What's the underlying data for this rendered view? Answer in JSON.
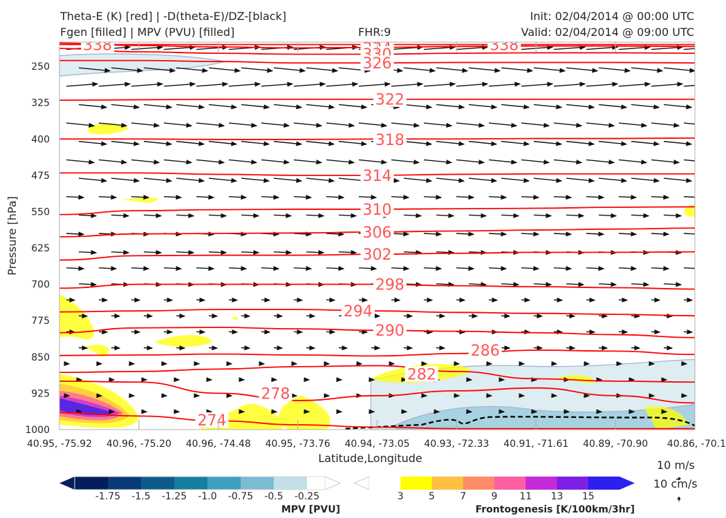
{
  "header": {
    "title_left_1": "Theta-E (K) [red] | -D(theta-E)/DZ-[black]",
    "title_left_2": "Fgen [filled] | MPV (PVU) [filled]",
    "fhr": "FHR:9",
    "init": "Init: 02/04/2014 @ 00:00 UTC",
    "valid": "Valid: 02/04/2014 @ 09:00 UTC"
  },
  "chart_data": {
    "type": "cross-section",
    "ylabel": "Pressure [hPa]",
    "xlabel": "Latitude,Longitude",
    "y_ticks": [
      250,
      325,
      400,
      475,
      550,
      625,
      700,
      775,
      850,
      925,
      1000
    ],
    "y_range": [
      200,
      1000
    ],
    "x_ticks": [
      "40.95, -75.92",
      "40.96, -75.20",
      "40.96, -74.48",
      "40.95, -73.76",
      "40.94, -73.05",
      "40.93, -72.33",
      "40.91, -71.61",
      "40.89, -70.90",
      "40.86, -70.1"
    ],
    "theta_e": {
      "color": "#ff0000",
      "label_color": "#ff5555",
      "levels": [
        {
          "value": 338,
          "p": [
            205,
            205,
            205,
            205,
            205,
            205,
            205,
            205,
            205
          ],
          "label_at": [
            [
              0.06,
              205
            ],
            [
              0.7,
              205
            ]
          ]
        },
        {
          "value": 334,
          "p": [
            202,
            207,
            210,
            212,
            211,
            209,
            208,
            208,
            209
          ],
          "label_at": [
            [
              0.5,
              212
            ]
          ]
        },
        {
          "value": 330,
          "p": [
            213,
            220,
            223,
            225,
            225,
            223,
            222,
            222,
            223
          ],
          "label_at": [
            [
              0.5,
              224
            ]
          ]
        },
        {
          "value": 326,
          "p": [
            238,
            238,
            240,
            243,
            243,
            242,
            242,
            242,
            243
          ],
          "label_at": [
            [
              0.5,
              243
            ]
          ]
        },
        {
          "value": 322,
          "p": [
            320,
            319,
            318,
            318,
            318,
            318,
            318,
            318,
            318
          ],
          "label_at": [
            [
              0.52,
              318
            ]
          ]
        },
        {
          "value": 318,
          "p": [
            400,
            400,
            401,
            401,
            400,
            400,
            399,
            399,
            398
          ],
          "label_at": [
            [
              0.52,
              401
            ]
          ]
        },
        {
          "value": 314,
          "p": [
            470,
            470,
            473,
            475,
            475,
            473,
            472,
            472,
            472
          ],
          "label_at": [
            [
              0.5,
              475
            ]
          ]
        },
        {
          "value": 310,
          "p": [
            556,
            548,
            546,
            545,
            545,
            544,
            543,
            541,
            540
          ],
          "label_at": [
            [
              0.5,
              545
            ]
          ]
        },
        {
          "value": 306,
          "p": [
            602,
            596,
            595,
            594,
            592,
            590,
            588,
            586,
            584
          ],
          "label_at": [
            [
              0.5,
              592
            ]
          ]
        },
        {
          "value": 302,
          "p": [
            650,
            641,
            640,
            640,
            638,
            636,
            634,
            634,
            633
          ],
          "label_at": [
            [
              0.5,
              638
            ]
          ]
        },
        {
          "value": 298,
          "p": [
            708,
            700,
            700,
            700,
            700,
            703,
            705,
            707,
            710
          ],
          "label_at": [
            [
              0.52,
              700
            ]
          ]
        },
        {
          "value": 294,
          "p": [
            757,
            755,
            752,
            752,
            755,
            758,
            760,
            762,
            765
          ],
          "label_at": [
            [
              0.47,
              755
            ]
          ]
        },
        {
          "value": 290,
          "p": [
            800,
            790,
            789,
            792,
            795,
            797,
            800,
            804,
            810
          ],
          "label_at": [
            [
              0.52,
              795
            ]
          ]
        },
        {
          "value": 286,
          "p": [
            847,
            846,
            844,
            846,
            848,
            843,
            836,
            838,
            845
          ],
          "label_at": [
            [
              0.67,
              836
            ]
          ]
        },
        {
          "value": 282,
          "p": [
            882,
            880,
            875,
            870,
            868,
            880,
            895,
            900,
            902
          ],
          "label_at": [
            [
              0.57,
              885
            ]
          ]
        },
        {
          "value": 278,
          "p": [
            900,
            902,
            925,
            940,
            930,
            920,
            914,
            930,
            945
          ],
          "label_at": [
            [
              0.34,
              925
            ]
          ]
        },
        {
          "value": 274,
          "p": [
            965,
            972,
            982,
            990,
            995,
            998,
            998,
            998,
            998
          ],
          "label_at": [
            [
              0.24,
              980
            ]
          ]
        }
      ]
    },
    "dthetae_dz": {
      "color": "#000000",
      "style": "dashed",
      "region": "near 1000 hPa from 40.94,-73.05 to 40.86,-70.1"
    },
    "fgen": {
      "units": "K/100km/3hr",
      "levels": [
        3,
        5,
        7,
        9,
        11,
        13,
        15
      ],
      "colors": [
        "#ffff00",
        "#ffbf40",
        "#ff8c69",
        "#ff5fa2",
        "#c32cd8",
        "#7f1fe5",
        "#2e1ff0"
      ]
    },
    "mpv": {
      "units": "PVU",
      "levels": [
        -1.75,
        -1.5,
        -1.25,
        -1.0,
        -0.75,
        -0.5,
        -0.25
      ],
      "colors": [
        "#041e5c",
        "#0a3a77",
        "#0f5a8c",
        "#147f9f",
        "#3f9fbd",
        "#7bbcd4",
        "#c2dfe8"
      ]
    },
    "wind_scale": {
      "u_label": "10 m/s",
      "w_label": "10 cm/s"
    }
  },
  "colorbars": {
    "mpv_title": "MPV [PVU]",
    "mpv_ticks": [
      "-1.75",
      "-1.5",
      "-1.25",
      "-1.0",
      "-0.75",
      "-0.5",
      "-0.25"
    ],
    "fgen_title": "Frontogenesis [K/100km/3hr]",
    "fgen_ticks": [
      "3",
      "5",
      "7",
      "9",
      "11",
      "13",
      "15"
    ]
  }
}
